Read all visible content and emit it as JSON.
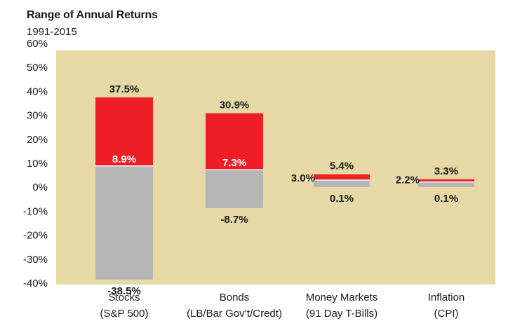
{
  "chart_data": {
    "type": "bar",
    "title": "Range of Annual Returns",
    "subtitle": "1991-2015",
    "ylim": [
      -40,
      60
    ],
    "yticks": [
      {
        "value": 60,
        "label": "60%"
      },
      {
        "value": 50,
        "label": "50%"
      },
      {
        "value": 40,
        "label": "40%"
      },
      {
        "value": 30,
        "label": "30%"
      },
      {
        "value": 20,
        "label": "20%"
      },
      {
        "value": 10,
        "label": "10%"
      },
      {
        "value": 0,
        "label": "0%"
      },
      {
        "value": -10,
        "label": "-10%"
      },
      {
        "value": -20,
        "label": "-20%"
      },
      {
        "value": -30,
        "label": "-30%"
      },
      {
        "value": -40,
        "label": "-40%"
      }
    ],
    "grid": false,
    "colors": {
      "plot_background": "#e6d9a6",
      "upper_segment": "#ee1e26",
      "lower_segment": "#b5b5b5"
    },
    "categories": [
      {
        "line1": "Stocks",
        "line2": "(S&P 500)",
        "high": 37.5,
        "average": 8.9,
        "low": -38.5,
        "high_label": "37.5%",
        "average_label": "8.9%",
        "low_label": "-38.5%"
      },
      {
        "line1": "Bonds",
        "line2": "(LB/Bar Gov’t/Credt)",
        "high": 30.9,
        "average": 7.3,
        "low": -8.7,
        "high_label": "30.9%",
        "average_label": "7.3%",
        "low_label": "-8.7%"
      },
      {
        "line1": "Money Markets",
        "line2": "(91 Day T-Bills)",
        "high": 5.4,
        "average": 3.0,
        "low": 0.1,
        "high_label": "5.4%",
        "average_label": "3.0%",
        "low_label": "0.1%"
      },
      {
        "line1": "Inflation",
        "line2": "(CPI)",
        "high": 3.3,
        "average": 2.2,
        "low": 0.1,
        "high_label": "3.3%",
        "average_label": "2.2%",
        "low_label": "0.1%"
      }
    ]
  }
}
